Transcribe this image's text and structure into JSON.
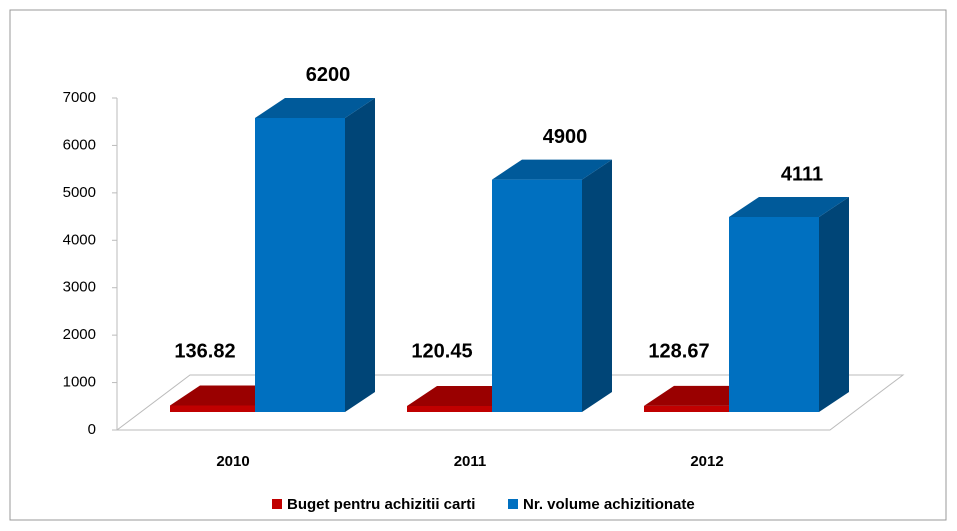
{
  "chart_data": {
    "type": "bar3d",
    "categories": [
      "2010",
      "2011",
      "2012"
    ],
    "series": [
      {
        "name": "Buget pentru achizitii carti",
        "color": "#c00000",
        "values": [
          136.82,
          120.45,
          128.67
        ]
      },
      {
        "name": "Nr. volume achizitionate",
        "color": "#0070c0",
        "values": [
          6200,
          4900,
          4111
        ]
      }
    ],
    "ylim": [
      0,
      7000
    ],
    "yticks": [
      0,
      1000,
      2000,
      3000,
      4000,
      5000,
      6000,
      7000
    ],
    "legend": "bottom"
  }
}
